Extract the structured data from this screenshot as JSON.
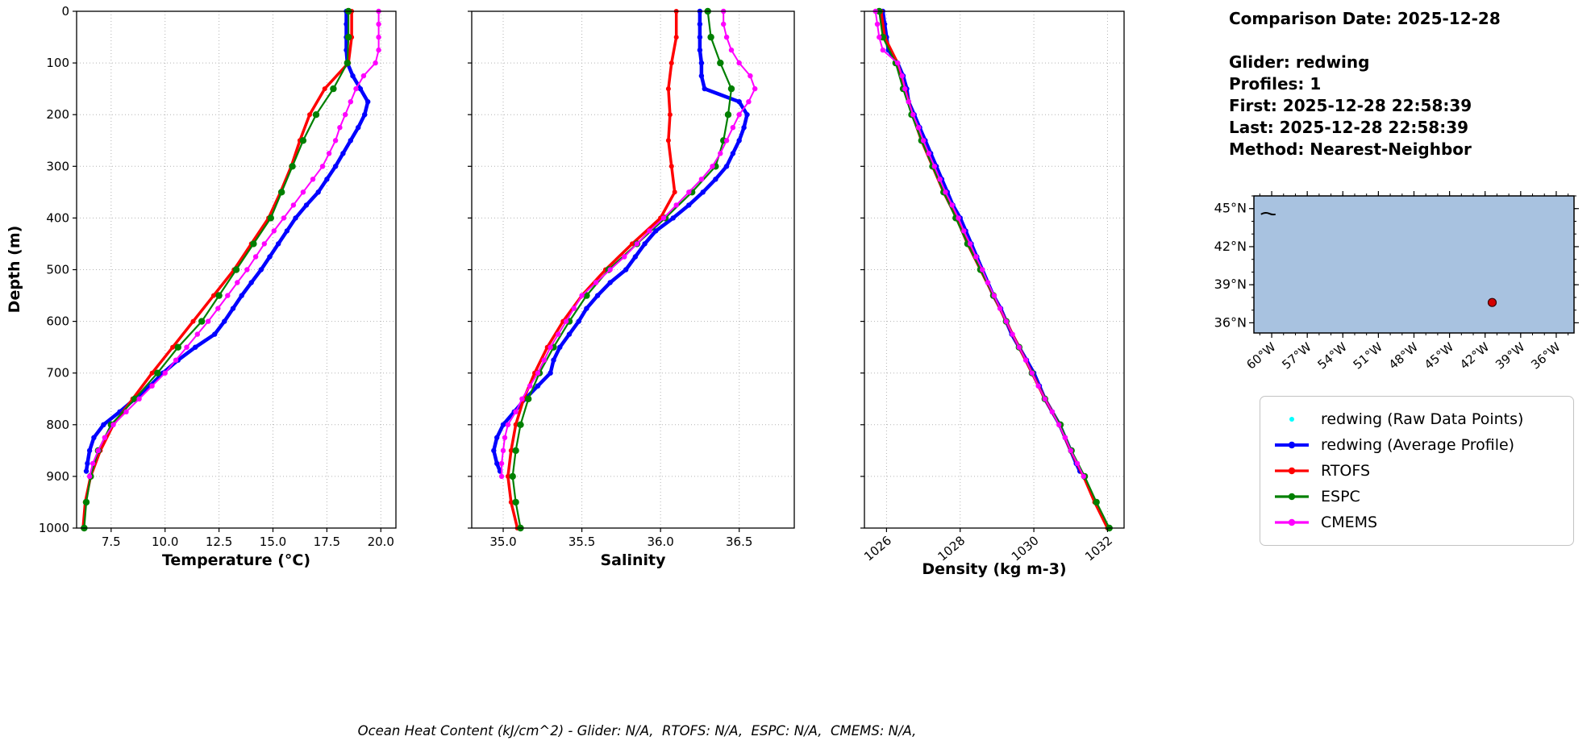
{
  "caption": "Ocean Heat Content (kJ/cm^2) - Glider: N/A,  RTOFS: N/A,  ESPC: N/A,  CMEMS: N/A,",
  "info": {
    "lines": [
      "Comparison Date: 2025-12-28",
      "",
      "Glider: redwing",
      "Profiles: 1",
      "First: 2025-12-28 22:58:39",
      "Last: 2025-12-28 22:58:39",
      "Method: Nearest-Neighbor"
    ]
  },
  "legend": {
    "entries": [
      {
        "label": "redwing (Raw Data Points)",
        "color": "#00ffff",
        "marker": "dot"
      },
      {
        "label": "redwing (Average Profile)",
        "color": "#0000ff",
        "marker": "line-dot"
      },
      {
        "label": "RTOFS",
        "color": "#ff0000",
        "marker": "line-dot"
      },
      {
        "label": "ESPC",
        "color": "#008000",
        "marker": "line-dot"
      },
      {
        "label": "CMEMS",
        "color": "#ff00ff",
        "marker": "line-dot"
      }
    ]
  },
  "map": {
    "ocean_color": "#a8c2e0",
    "extent": {
      "lon_min": -61.5,
      "lon_max": -34.5,
      "lat_min": 35.2,
      "lat_max": 46.0
    },
    "lon_ticks": [
      -60,
      -57,
      -54,
      -51,
      -48,
      -45,
      -42,
      -39,
      -36
    ],
    "lon_tick_labels": [
      "60°W",
      "57°W",
      "54°W",
      "51°W",
      "48°W",
      "45°W",
      "42°W",
      "39°W",
      "36°W"
    ],
    "lat_ticks": [
      36,
      39,
      42,
      45
    ],
    "lat_tick_labels": [
      "36°N",
      "39°N",
      "42°N",
      "45°N"
    ],
    "glider_point": {
      "lon": -41.4,
      "lat": 37.6,
      "color": "#d40000"
    }
  },
  "chart_data": [
    {
      "type": "line",
      "id": "temperature-profile",
      "xlabel": "Temperature (°C)",
      "ylabel": "Depth (m)",
      "xlim": [
        5.9,
        20.7
      ],
      "ylim": [
        0,
        1000
      ],
      "xticks": [
        7.5,
        10.0,
        12.5,
        15.0,
        17.5,
        20.0
      ],
      "xtick_labels": [
        "7.5",
        "10.0",
        "12.5",
        "15.0",
        "17.5",
        "20.0"
      ],
      "xtick_rotation": 0,
      "yticks": [
        0,
        100,
        200,
        300,
        400,
        500,
        600,
        700,
        800,
        900,
        1000
      ],
      "grid": true,
      "series": [
        {
          "name": "redwing (Average Profile)",
          "color": "#0000ff",
          "y": [
            0,
            25,
            50,
            75,
            100,
            125,
            150,
            175,
            200,
            225,
            250,
            275,
            300,
            325,
            350,
            375,
            400,
            425,
            450,
            475,
            500,
            525,
            550,
            575,
            600,
            625,
            650,
            675,
            700,
            725,
            750,
            775,
            800,
            825,
            850,
            875,
            890
          ],
          "x": [
            18.4,
            18.4,
            18.4,
            18.4,
            18.45,
            18.7,
            19.05,
            19.4,
            19.25,
            18.95,
            18.6,
            18.25,
            17.9,
            17.5,
            17.1,
            16.55,
            16.05,
            15.65,
            15.25,
            14.85,
            14.45,
            14.0,
            13.55,
            13.15,
            12.75,
            12.3,
            11.4,
            10.6,
            9.9,
            9.3,
            8.6,
            7.9,
            7.15,
            6.7,
            6.5,
            6.4,
            6.35
          ]
        },
        {
          "name": "RTOFS",
          "color": "#ff0000",
          "y": [
            0,
            50,
            100,
            150,
            200,
            250,
            300,
            350,
            400,
            450,
            500,
            550,
            600,
            650,
            700,
            750,
            800,
            850,
            900,
            950,
            1000
          ],
          "x": [
            18.65,
            18.65,
            18.5,
            17.4,
            16.7,
            16.25,
            15.85,
            15.35,
            14.8,
            14.0,
            13.2,
            12.25,
            11.3,
            10.35,
            9.4,
            8.5,
            7.6,
            7.0,
            6.55,
            6.3,
            6.2
          ]
        },
        {
          "name": "ESPC",
          "color": "#008000",
          "y": [
            0,
            50,
            100,
            150,
            200,
            250,
            300,
            350,
            400,
            450,
            500,
            550,
            600,
            650,
            700,
            750,
            800,
            850,
            900,
            950,
            1000
          ],
          "x": [
            18.5,
            18.5,
            18.45,
            17.8,
            17.0,
            16.4,
            15.9,
            15.4,
            14.9,
            14.1,
            13.3,
            12.5,
            11.7,
            10.6,
            9.65,
            8.6,
            7.5,
            6.9,
            6.55,
            6.35,
            6.25
          ]
        },
        {
          "name": "CMEMS",
          "color": "#ff00ff",
          "y": [
            0,
            25,
            50,
            75,
            100,
            125,
            150,
            175,
            200,
            225,
            250,
            275,
            300,
            325,
            350,
            375,
            400,
            425,
            450,
            475,
            500,
            525,
            550,
            575,
            600,
            625,
            650,
            675,
            700,
            725,
            750,
            775,
            800,
            825,
            850,
            875,
            900
          ],
          "x": [
            19.9,
            19.9,
            19.9,
            19.9,
            19.75,
            19.2,
            18.85,
            18.6,
            18.35,
            18.1,
            17.9,
            17.6,
            17.3,
            16.85,
            16.4,
            15.95,
            15.5,
            15.05,
            14.6,
            14.2,
            13.8,
            13.35,
            12.9,
            12.45,
            12.0,
            11.5,
            11.0,
            10.5,
            10.0,
            9.4,
            8.8,
            8.2,
            7.6,
            7.2,
            6.9,
            6.65,
            6.5
          ]
        }
      ]
    },
    {
      "type": "line",
      "id": "salinity-profile",
      "xlabel": "Salinity",
      "xlim": [
        34.8,
        36.85
      ],
      "ylim": [
        0,
        1000
      ],
      "xticks": [
        35.0,
        35.5,
        36.0,
        36.5
      ],
      "xtick_labels": [
        "35.0",
        "35.5",
        "36.0",
        "36.5"
      ],
      "xtick_rotation": 0,
      "yticks": [
        0,
        100,
        200,
        300,
        400,
        500,
        600,
        700,
        800,
        900,
        1000
      ],
      "grid": true,
      "series": [
        {
          "name": "redwing (Average Profile)",
          "color": "#0000ff",
          "y": [
            0,
            25,
            50,
            75,
            100,
            125,
            150,
            175,
            200,
            225,
            250,
            275,
            300,
            325,
            350,
            375,
            400,
            425,
            450,
            475,
            500,
            525,
            550,
            575,
            600,
            625,
            650,
            675,
            700,
            725,
            750,
            775,
            800,
            825,
            850,
            875,
            890
          ],
          "x": [
            36.25,
            36.25,
            36.25,
            36.25,
            36.26,
            36.26,
            36.28,
            36.5,
            36.55,
            36.53,
            36.5,
            36.46,
            36.42,
            36.35,
            36.27,
            36.18,
            36.08,
            35.97,
            35.9,
            35.84,
            35.78,
            35.68,
            35.6,
            35.53,
            35.48,
            35.42,
            35.36,
            35.32,
            35.3,
            35.22,
            35.14,
            35.07,
            35.0,
            34.96,
            34.94,
            34.96,
            34.98
          ]
        },
        {
          "name": "RTOFS",
          "color": "#ff0000",
          "y": [
            0,
            50,
            100,
            150,
            200,
            250,
            300,
            350,
            400,
            450,
            500,
            550,
            600,
            650,
            700,
            750,
            800,
            850,
            900,
            950,
            1000
          ],
          "x": [
            36.1,
            36.1,
            36.07,
            36.05,
            36.06,
            36.05,
            36.07,
            36.09,
            36.0,
            35.82,
            35.65,
            35.5,
            35.38,
            35.28,
            35.2,
            35.13,
            35.08,
            35.05,
            35.03,
            35.05,
            35.09
          ]
        },
        {
          "name": "ESPC",
          "color": "#008000",
          "y": [
            0,
            50,
            100,
            150,
            200,
            250,
            300,
            350,
            400,
            450,
            500,
            550,
            600,
            650,
            700,
            750,
            800,
            850,
            900,
            950,
            1000
          ],
          "x": [
            36.3,
            36.32,
            36.38,
            36.45,
            36.43,
            36.4,
            36.35,
            36.2,
            36.03,
            35.85,
            35.67,
            35.53,
            35.42,
            35.32,
            35.23,
            35.16,
            35.11,
            35.08,
            35.06,
            35.08,
            35.11
          ]
        },
        {
          "name": "CMEMS",
          "color": "#ff00ff",
          "y": [
            0,
            25,
            50,
            75,
            100,
            125,
            150,
            175,
            200,
            225,
            250,
            275,
            300,
            325,
            350,
            375,
            400,
            425,
            450,
            475,
            500,
            525,
            550,
            575,
            600,
            625,
            650,
            675,
            700,
            725,
            750,
            775,
            800,
            825,
            850,
            875,
            900
          ],
          "x": [
            36.4,
            36.4,
            36.42,
            36.45,
            36.5,
            36.57,
            36.6,
            36.56,
            36.5,
            36.46,
            36.42,
            36.38,
            36.33,
            36.26,
            36.18,
            36.1,
            36.02,
            35.93,
            35.85,
            35.77,
            35.68,
            35.59,
            35.5,
            35.45,
            35.4,
            35.35,
            35.3,
            35.26,
            35.22,
            35.17,
            35.12,
            35.08,
            35.03,
            35.01,
            35.0,
            34.99,
            34.99
          ]
        }
      ]
    },
    {
      "type": "line",
      "id": "density-profile",
      "xlabel": "Density (kg m-3)",
      "xlim": [
        1025.4,
        1032.45
      ],
      "ylim": [
        0,
        1000
      ],
      "xticks": [
        1026,
        1028,
        1030,
        1032
      ],
      "xtick_labels": [
        "1026",
        "1028",
        "1030",
        "1032"
      ],
      "xtick_rotation": -40,
      "yticks": [
        0,
        100,
        200,
        300,
        400,
        500,
        600,
        700,
        800,
        900,
        1000
      ],
      "grid": true,
      "series": [
        {
          "name": "redwing (Average Profile)",
          "color": "#0000ff",
          "y": [
            0,
            25,
            50,
            75,
            100,
            125,
            150,
            175,
            200,
            225,
            250,
            275,
            300,
            325,
            350,
            375,
            400,
            425,
            450,
            475,
            500,
            525,
            550,
            575,
            600,
            625,
            650,
            675,
            700,
            725,
            750,
            775,
            800,
            825,
            850,
            875,
            890
          ],
          "x": [
            1025.9,
            1025.95,
            1026.0,
            1026.05,
            1026.3,
            1026.45,
            1026.55,
            1026.6,
            1026.75,
            1026.9,
            1027.05,
            1027.2,
            1027.35,
            1027.5,
            1027.65,
            1027.8,
            1028.0,
            1028.15,
            1028.3,
            1028.45,
            1028.6,
            1028.75,
            1028.9,
            1029.1,
            1029.25,
            1029.4,
            1029.6,
            1029.8,
            1030.0,
            1030.15,
            1030.3,
            1030.5,
            1030.7,
            1030.85,
            1031.0,
            1031.15,
            1031.25
          ]
        },
        {
          "name": "RTOFS",
          "color": "#ff0000",
          "y": [
            0,
            50,
            100,
            150,
            200,
            250,
            300,
            350,
            400,
            450,
            500,
            550,
            600,
            650,
            700,
            750,
            800,
            850,
            900,
            950,
            1000
          ],
          "x": [
            1025.85,
            1025.95,
            1026.3,
            1026.5,
            1026.7,
            1026.95,
            1027.25,
            1027.55,
            1027.9,
            1028.2,
            1028.55,
            1028.9,
            1029.25,
            1029.6,
            1029.95,
            1030.3,
            1030.7,
            1031.0,
            1031.35,
            1031.65,
            1032.0
          ]
        },
        {
          "name": "ESPC",
          "color": "#008000",
          "y": [
            0,
            50,
            100,
            150,
            200,
            250,
            300,
            350,
            400,
            450,
            500,
            550,
            600,
            650,
            700,
            750,
            800,
            850,
            900,
            950,
            1000
          ],
          "x": [
            1025.8,
            1025.9,
            1026.25,
            1026.45,
            1026.68,
            1026.95,
            1027.25,
            1027.55,
            1027.88,
            1028.2,
            1028.55,
            1028.9,
            1029.25,
            1029.6,
            1029.95,
            1030.3,
            1030.72,
            1031.02,
            1031.38,
            1031.7,
            1032.05
          ]
        },
        {
          "name": "CMEMS",
          "color": "#ff00ff",
          "y": [
            0,
            25,
            50,
            75,
            100,
            125,
            150,
            175,
            200,
            225,
            250,
            275,
            300,
            325,
            350,
            375,
            400,
            425,
            450,
            475,
            500,
            525,
            550,
            575,
            600,
            625,
            650,
            675,
            700,
            725,
            750,
            775,
            800,
            825,
            850,
            875,
            900
          ],
          "x": [
            1025.7,
            1025.75,
            1025.8,
            1025.9,
            1026.3,
            1026.42,
            1026.5,
            1026.6,
            1026.72,
            1026.87,
            1027.0,
            1027.15,
            1027.3,
            1027.45,
            1027.6,
            1027.78,
            1027.95,
            1028.1,
            1028.27,
            1028.43,
            1028.6,
            1028.75,
            1028.92,
            1029.08,
            1029.25,
            1029.42,
            1029.6,
            1029.78,
            1029.95,
            1030.12,
            1030.3,
            1030.5,
            1030.68,
            1030.85,
            1031.0,
            1031.18,
            1031.35
          ]
        }
      ]
    }
  ]
}
